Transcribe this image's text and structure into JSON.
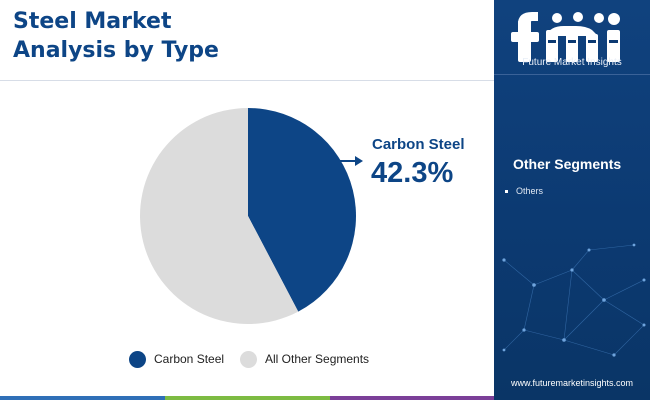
{
  "title": {
    "line1": "Steel Market",
    "line2": "Analysis by Type"
  },
  "chart_data": {
    "type": "pie",
    "categories": [
      "Carbon Steel",
      "All Other Segments"
    ],
    "values": [
      42.3,
      57.7
    ],
    "colors": [
      "#0d4586",
      "#dcdcdc"
    ],
    "legend_position": "bottom",
    "annotation": {
      "label": "Carbon Steel",
      "value_text": "42.3%"
    }
  },
  "legend": [
    {
      "label": "Carbon Steel",
      "color": "#0d4586"
    },
    {
      "label": "All Other Segments",
      "color": "#dcdcdc"
    }
  ],
  "sidebar": {
    "brand": "fmi",
    "brand_name": "Future Market Insights",
    "heading": "Other Segments",
    "items": [
      "Others"
    ],
    "website": "www.futuremarketinsights.com"
  },
  "colors": {
    "primary": "#0d4586",
    "sidebar_bg": "#0c3a72",
    "secondary": "#dcdcdc",
    "bottom_bar": [
      "#2f6fb7",
      "#7dbb42",
      "#e08a2b",
      "#7b3f98"
    ]
  }
}
